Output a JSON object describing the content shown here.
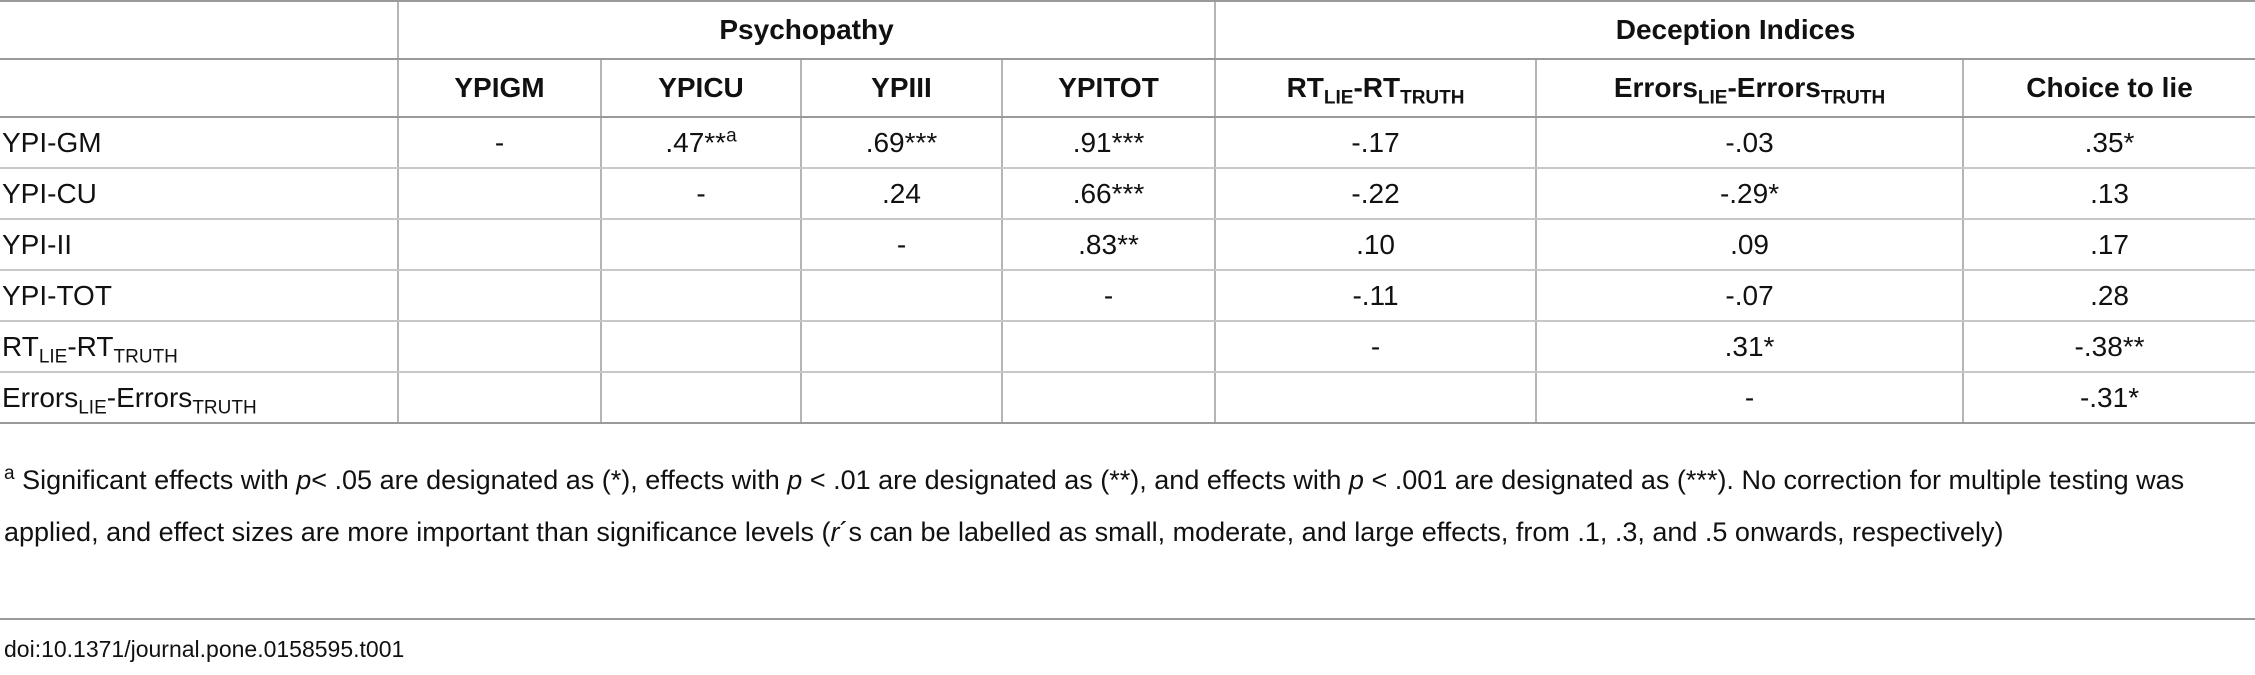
{
  "table": {
    "group_headers": [
      "Psychopathy",
      "Deception Indices"
    ],
    "column_headers": [
      null,
      "YPIGM",
      "YPICU",
      "YPIII",
      "YPITOT",
      [
        {
          "text": "RT"
        },
        {
          "text": "LIE",
          "style": "sub"
        },
        {
          "text": "-RT"
        },
        {
          "text": "TRUTH",
          "style": "sub"
        }
      ],
      [
        {
          "text": "Errors"
        },
        {
          "text": "LIE",
          "style": "sub"
        },
        {
          "text": "-Errors"
        },
        {
          "text": "TRUTH",
          "style": "sub"
        }
      ],
      "Choice to lie"
    ],
    "rows": [
      [
        "YPI-GM",
        "-",
        [
          {
            "text": ".47**"
          },
          {
            "text": "a",
            "style": "sup"
          }
        ],
        ".69***",
        ".91***",
        "-.17",
        "-.03",
        ".35*"
      ],
      [
        "YPI-CU",
        null,
        "-",
        ".24",
        ".66***",
        "-.22",
        "-.29*",
        ".13"
      ],
      [
        "YPI-II",
        null,
        null,
        "-",
        ".83**",
        ".10",
        ".09",
        ".17"
      ],
      [
        "YPI-TOT",
        null,
        null,
        null,
        "-",
        "-.11",
        "-.07",
        ".28"
      ],
      [
        [
          {
            "text": "RT"
          },
          {
            "text": "LIE",
            "style": "sub"
          },
          {
            "text": "-RT"
          },
          {
            "text": "TRUTH",
            "style": "sub"
          }
        ],
        null,
        null,
        null,
        null,
        "-",
        ".31*",
        "-.38**"
      ],
      [
        [
          {
            "text": "Errors"
          },
          {
            "text": "LIE",
            "style": "sub"
          },
          {
            "text": "-Errors"
          },
          {
            "text": "TRUTH",
            "style": "sub"
          }
        ],
        null,
        null,
        null,
        null,
        null,
        "-",
        "-.31*"
      ]
    ]
  },
  "footnote": [
    {
      "text": "a",
      "style": "sup"
    },
    {
      "text": " Significant effects with "
    },
    {
      "text": "p",
      "style": "italic"
    },
    {
      "text": "< .05 are designated as (*), effects with "
    },
    {
      "text": "p",
      "style": "italic"
    },
    {
      "text": " < .01 are designated as (**), and effects with "
    },
    {
      "text": "p",
      "style": "italic"
    },
    {
      "text": " < .001 are designated as (***). No correction for multiple testing was applied, and effect sizes are more important than significance levels ("
    },
    {
      "text": "r",
      "style": "italic"
    },
    {
      "text": "´s can be labelled as small, moderate, and large effects, from .1, .3, and .5 onwards, respectively)"
    }
  ],
  "doi": "doi:10.1371/journal.pone.0158595.t001"
}
